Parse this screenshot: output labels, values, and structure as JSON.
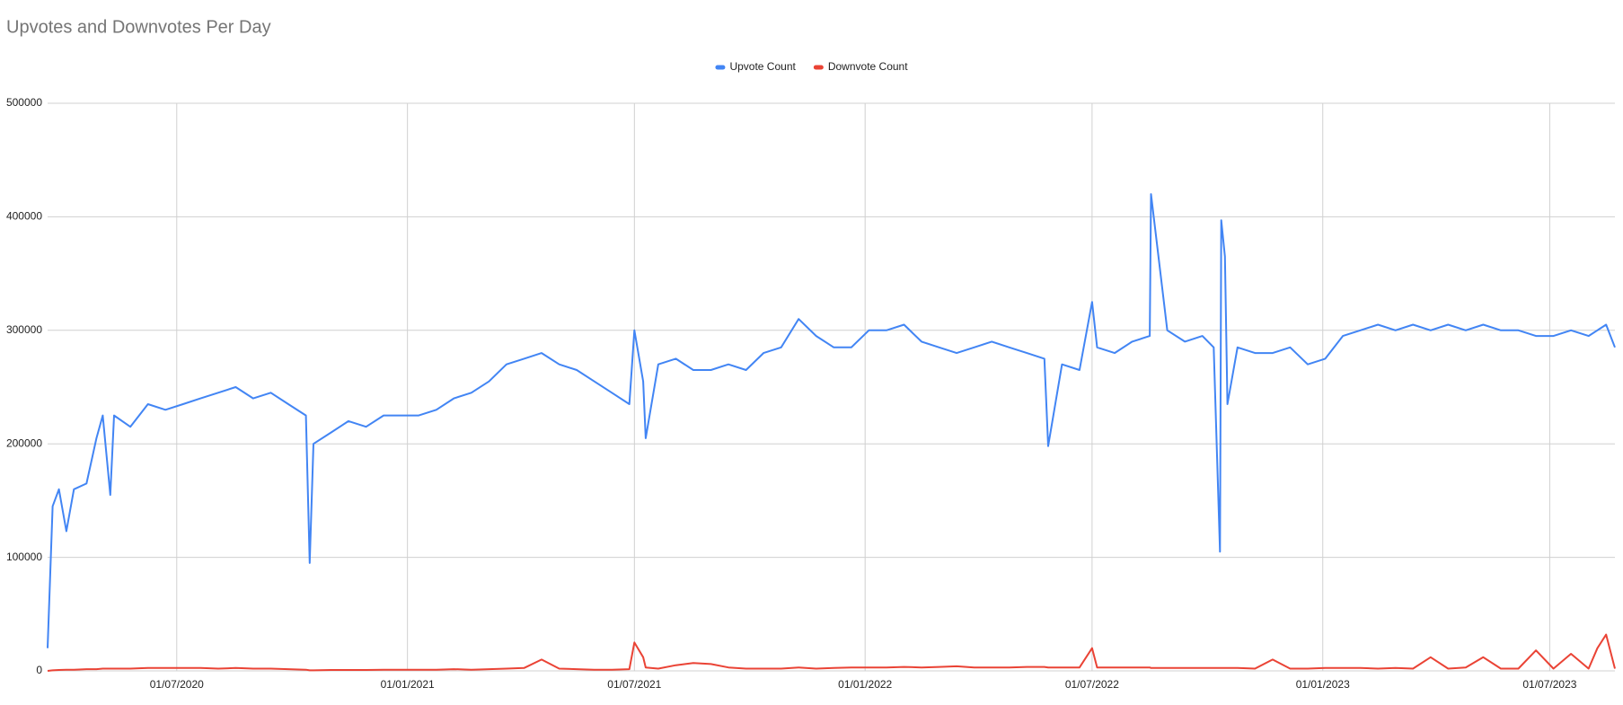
{
  "chart_data": {
    "type": "line",
    "title": "Upvotes and Downvotes Per Day",
    "x": [
      "2020-03-20",
      "2020-03-24",
      "2020-03-29",
      "2020-04-04",
      "2020-04-10",
      "2020-04-20",
      "2020-04-28",
      "2020-05-03",
      "2020-05-09",
      "2020-05-12",
      "2020-05-25",
      "2020-06-08",
      "2020-06-22",
      "2020-07-06",
      "2020-07-20",
      "2020-08-03",
      "2020-08-17",
      "2020-08-31",
      "2020-09-14",
      "2020-09-28",
      "2020-10-12",
      "2020-10-15",
      "2020-10-18",
      "2020-11-01",
      "2020-11-15",
      "2020-11-29",
      "2020-12-13",
      "2020-12-27",
      "2021-01-10",
      "2021-01-24",
      "2021-02-07",
      "2021-02-21",
      "2021-03-07",
      "2021-03-21",
      "2021-04-04",
      "2021-04-18",
      "2021-05-02",
      "2021-05-16",
      "2021-05-30",
      "2021-06-13",
      "2021-06-27",
      "2021-07-01",
      "2021-07-08",
      "2021-07-10",
      "2021-07-20",
      "2021-08-03",
      "2021-08-17",
      "2021-08-31",
      "2021-09-14",
      "2021-09-28",
      "2021-10-12",
      "2021-10-26",
      "2021-11-09",
      "2021-11-23",
      "2021-12-07",
      "2021-12-21",
      "2022-01-04",
      "2022-01-18",
      "2022-02-01",
      "2022-02-15",
      "2022-03-01",
      "2022-03-15",
      "2022-03-29",
      "2022-04-12",
      "2022-04-26",
      "2022-05-10",
      "2022-05-24",
      "2022-05-27",
      "2022-06-07",
      "2022-06-21",
      "2022-07-01",
      "2022-07-05",
      "2022-07-19",
      "2022-08-02",
      "2022-08-16",
      "2022-08-17",
      "2022-08-30",
      "2022-09-13",
      "2022-09-27",
      "2022-10-06",
      "2022-10-11",
      "2022-10-12",
      "2022-10-15",
      "2022-10-17",
      "2022-10-25",
      "2022-11-08",
      "2022-11-22",
      "2022-12-06",
      "2022-12-20",
      "2023-01-03",
      "2023-01-17",
      "2023-01-31",
      "2023-02-14",
      "2023-02-28",
      "2023-03-14",
      "2023-03-28",
      "2023-04-11",
      "2023-04-25",
      "2023-05-09",
      "2023-05-23",
      "2023-06-06",
      "2023-06-20",
      "2023-07-04",
      "2023-07-18",
      "2023-08-01",
      "2023-08-08",
      "2023-08-15",
      "2023-08-22"
    ],
    "series": [
      {
        "name": "Upvote Count",
        "color": "#4285f4",
        "values": [
          20000,
          145000,
          160000,
          123000,
          160000,
          165000,
          205000,
          225000,
          155000,
          225000,
          215000,
          235000,
          230000,
          235000,
          240000,
          245000,
          250000,
          240000,
          245000,
          235000,
          225000,
          95000,
          200000,
          210000,
          220000,
          215000,
          225000,
          225000,
          225000,
          230000,
          240000,
          245000,
          255000,
          270000,
          275000,
          280000,
          270000,
          265000,
          255000,
          245000,
          235000,
          300000,
          255000,
          205000,
          270000,
          275000,
          265000,
          265000,
          270000,
          265000,
          280000,
          285000,
          310000,
          295000,
          285000,
          285000,
          300000,
          300000,
          305000,
          290000,
          285000,
          280000,
          285000,
          290000,
          285000,
          280000,
          275000,
          198000,
          270000,
          265000,
          325000,
          285000,
          280000,
          290000,
          295000,
          420000,
          300000,
          290000,
          295000,
          285000,
          105000,
          397000,
          365000,
          235000,
          285000,
          280000,
          280000,
          285000,
          270000,
          275000,
          295000,
          300000,
          305000,
          300000,
          305000,
          300000,
          305000,
          300000,
          305000,
          300000,
          300000,
          295000,
          295000,
          300000,
          295000,
          300000,
          305000,
          285000
        ]
      },
      {
        "name": "Downvote Count",
        "color": "#ea4335",
        "values": [
          0,
          500,
          800,
          1000,
          1000,
          1500,
          1500,
          2000,
          2000,
          2000,
          2000,
          2500,
          2500,
          2500,
          2500,
          2000,
          2500,
          2000,
          2000,
          1500,
          1000,
          500,
          500,
          800,
          800,
          800,
          1000,
          1000,
          1000,
          1000,
          1500,
          1000,
          1500,
          2000,
          2500,
          10000,
          2000,
          1500,
          1000,
          1000,
          1500,
          25000,
          12000,
          3000,
          2000,
          5000,
          7000,
          6000,
          3000,
          2000,
          2000,
          2000,
          3000,
          2000,
          2500,
          3000,
          3000,
          3000,
          3500,
          3000,
          3500,
          4000,
          3000,
          3000,
          3000,
          3500,
          3500,
          3000,
          3000,
          3000,
          20000,
          3000,
          3000,
          3000,
          3000,
          2500,
          2500,
          2500,
          2500,
          2500,
          2500,
          2500,
          2500,
          2500,
          2500,
          2000,
          10000,
          2000,
          2000,
          2500,
          2500,
          2500,
          2000,
          2500,
          2000,
          12000,
          2000,
          3000,
          12000,
          2000,
          2000,
          18000,
          2000,
          15000,
          2000,
          20000,
          32000,
          2000
        ]
      }
    ],
    "xlim": [
      "2020-03-20",
      "2023-08-22"
    ],
    "xticks": [
      {
        "value": "2020-07-01",
        "label": "01/07/2020"
      },
      {
        "value": "2021-01-01",
        "label": "01/01/2021"
      },
      {
        "value": "2021-07-01",
        "label": "01/07/2021"
      },
      {
        "value": "2022-01-01",
        "label": "01/01/2022"
      },
      {
        "value": "2022-07-01",
        "label": "01/07/2022"
      },
      {
        "value": "2023-01-01",
        "label": "01/01/2023"
      },
      {
        "value": "2023-07-01",
        "label": "01/07/2023"
      }
    ],
    "ylim": [
      0,
      500000
    ],
    "yticks": [
      0,
      100000,
      200000,
      300000,
      400000,
      500000
    ],
    "grid": true,
    "legend": "top"
  }
}
